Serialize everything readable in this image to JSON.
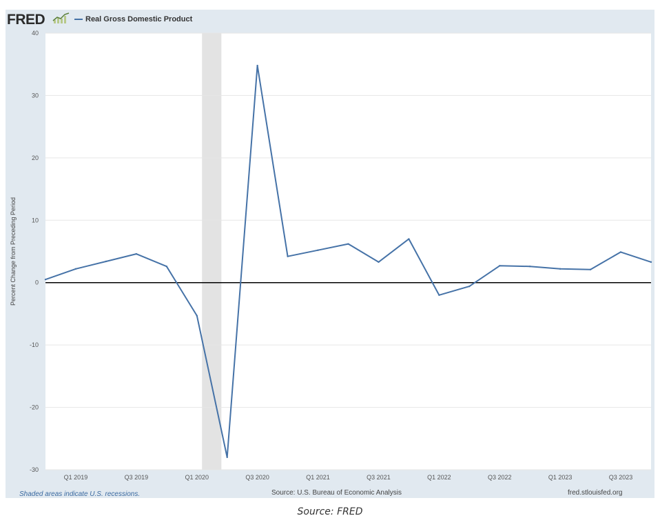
{
  "header": {
    "logo_text": "FRED",
    "logo_mark_icon": "chart-line-icon"
  },
  "footer": {
    "note": "Shaded areas indicate U.S. recessions.",
    "source": "Source: U.S. Bureau of Economic Analysis",
    "url": "fred.stlouisfed.org"
  },
  "caption": "Source: FRED",
  "colors": {
    "series": "#4572a7",
    "frame": "#e1e9f0",
    "recession": "#e3e3e3",
    "zero_line": "#000000"
  },
  "chart_data": {
    "type": "line",
    "title": "",
    "xlabel": "",
    "ylabel": "Percent Change from Preceding Period",
    "ylim": [
      -30,
      40
    ],
    "yticks": [
      -30,
      -20,
      -10,
      0,
      10,
      20,
      30,
      40
    ],
    "xlim": [
      "2018 Q4",
      "2023 Q4"
    ],
    "x_tick_labels": [
      "Q1 2019",
      "Q3 2019",
      "Q1 2020",
      "Q3 2020",
      "Q1 2021",
      "Q3 2021",
      "Q1 2022",
      "Q3 2022",
      "Q1 2023",
      "Q3 2023"
    ],
    "x": [
      "2018 Q4",
      "2019 Q1",
      "2019 Q2",
      "2019 Q3",
      "2019 Q4",
      "2020 Q1",
      "2020 Q2",
      "2020 Q3",
      "2020 Q4",
      "2021 Q1",
      "2021 Q2",
      "2021 Q3",
      "2021 Q4",
      "2022 Q1",
      "2022 Q2",
      "2022 Q3",
      "2022 Q4",
      "2023 Q1",
      "2023 Q2",
      "2023 Q3",
      "2023 Q4"
    ],
    "series": [
      {
        "name": "Real Gross Domestic Product",
        "values": [
          0.5,
          2.2,
          3.4,
          4.6,
          2.6,
          -5.3,
          -28.0,
          34.8,
          4.2,
          5.2,
          6.2,
          3.3,
          7.0,
          -2.0,
          -0.6,
          2.7,
          2.6,
          2.2,
          2.1,
          4.9,
          3.3
        ]
      }
    ],
    "recessions": [
      [
        "2020 Q1",
        "2020 Q2"
      ]
    ],
    "zero_line": true,
    "grid": "horizontal",
    "legend_position": "top-left"
  }
}
